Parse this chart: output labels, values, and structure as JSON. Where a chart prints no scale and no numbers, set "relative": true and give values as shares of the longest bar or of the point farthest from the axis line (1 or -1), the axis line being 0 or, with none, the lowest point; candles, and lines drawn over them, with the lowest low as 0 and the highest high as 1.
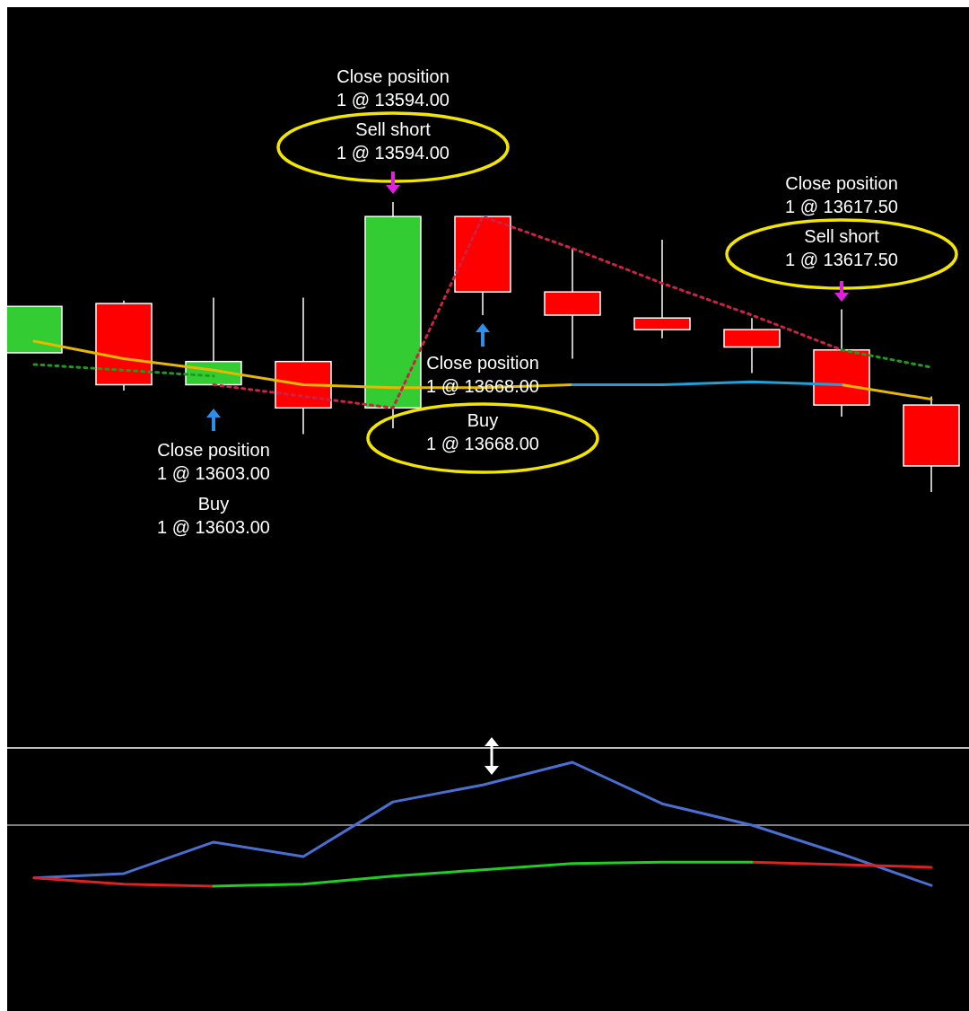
{
  "chart_data": [
    {
      "type": "candlestick",
      "relative": true,
      "categories": [
        null,
        null,
        null,
        null,
        null,
        null,
        null,
        null,
        null,
        null,
        null
      ],
      "ohlc": [
        [
          0.48,
          0.64,
          0.48,
          0.64
        ],
        [
          0.65,
          0.66,
          0.35,
          0.37
        ],
        [
          0.37,
          0.67,
          0.37,
          0.45
        ],
        [
          0.45,
          0.67,
          0.2,
          0.29
        ],
        [
          0.29,
          1,
          0.22,
          0.95
        ],
        [
          0.95,
          0.95,
          0.61,
          0.69
        ],
        [
          0.69,
          0.84,
          0.46,
          0.61
        ],
        [
          0.6,
          0.87,
          0.53,
          0.56
        ],
        [
          0.56,
          0.6,
          0.41,
          0.5
        ],
        [
          0.49,
          0.63,
          0.26,
          0.3
        ],
        [
          0.3,
          0.33,
          0,
          0.09
        ]
      ],
      "colors": [
        "#33cc33",
        "#ff0000",
        "#33cc33",
        "#ff0000",
        "#33cc33",
        "#ff0000",
        "#ff0000",
        "#ff0000",
        "#ff0000",
        "#ff0000",
        "#ff0000"
      ],
      "series": [
        {
          "type": "line",
          "color": "#e6b800",
          "line_style": "solid",
          "values": [
            0.52,
            0.46,
            0.42,
            0.37,
            0.36,
            0.36,
            0.37,
            null,
            null,
            0.37,
            0.32
          ]
        },
        {
          "type": "line",
          "color": "#1ea0d8",
          "line_style": "solid",
          "values": [
            null,
            null,
            null,
            null,
            null,
            null,
            0.37,
            0.37,
            0.38,
            0.37,
            null
          ]
        },
        {
          "type": "line",
          "color": "#1f9a1f",
          "line_style": "dotted",
          "values": [
            0.44,
            0.42,
            0.4,
            null,
            null,
            null,
            null,
            null,
            null,
            0.49,
            0.43
          ]
        },
        {
          "type": "line",
          "color": "#cc2244",
          "line_style": "dotted",
          "values": [
            null,
            null,
            0.37,
            0.33,
            0.29,
            0.95,
            0.84,
            0.72,
            0.61,
            0.49,
            null
          ]
        }
      ],
      "annotations": [
        "Close position\n1 @ 13594.00",
        "Sell short\n1 @ 13594.00",
        "Close position\n1 @ 13617.50",
        "Sell short\n1 @ 13617.50",
        "Close position\n1 @ 13603.00",
        "Buy\n1 @ 13603.00",
        "Close position\n1 @ 13668.00",
        "Buy\n1 @ 13668.00"
      ]
    },
    {
      "type": "line",
      "relative": true,
      "categories": [
        null,
        null,
        null,
        null,
        null,
        null,
        null,
        null,
        null,
        null,
        null
      ],
      "series": [
        {
          "color": "#4a6fd0",
          "values": [
            -0.84,
            -0.77,
            -0.27,
            -0.5,
            0.37,
            0.64,
            1,
            0.34,
            0,
            -0.46,
            -0.96
          ]
        },
        {
          "color": "#dd2222",
          "values": [
            -0.84,
            -0.94,
            -0.97,
            null,
            null,
            null,
            null,
            null,
            -0.59,
            -0.63,
            -0.67
          ]
        },
        {
          "color": "#22cc22",
          "values": [
            null,
            null,
            -0.97,
            -0.94,
            -0.81,
            -0.71,
            -0.61,
            -0.59,
            -0.59,
            null,
            null
          ]
        }
      ]
    }
  ]
}
